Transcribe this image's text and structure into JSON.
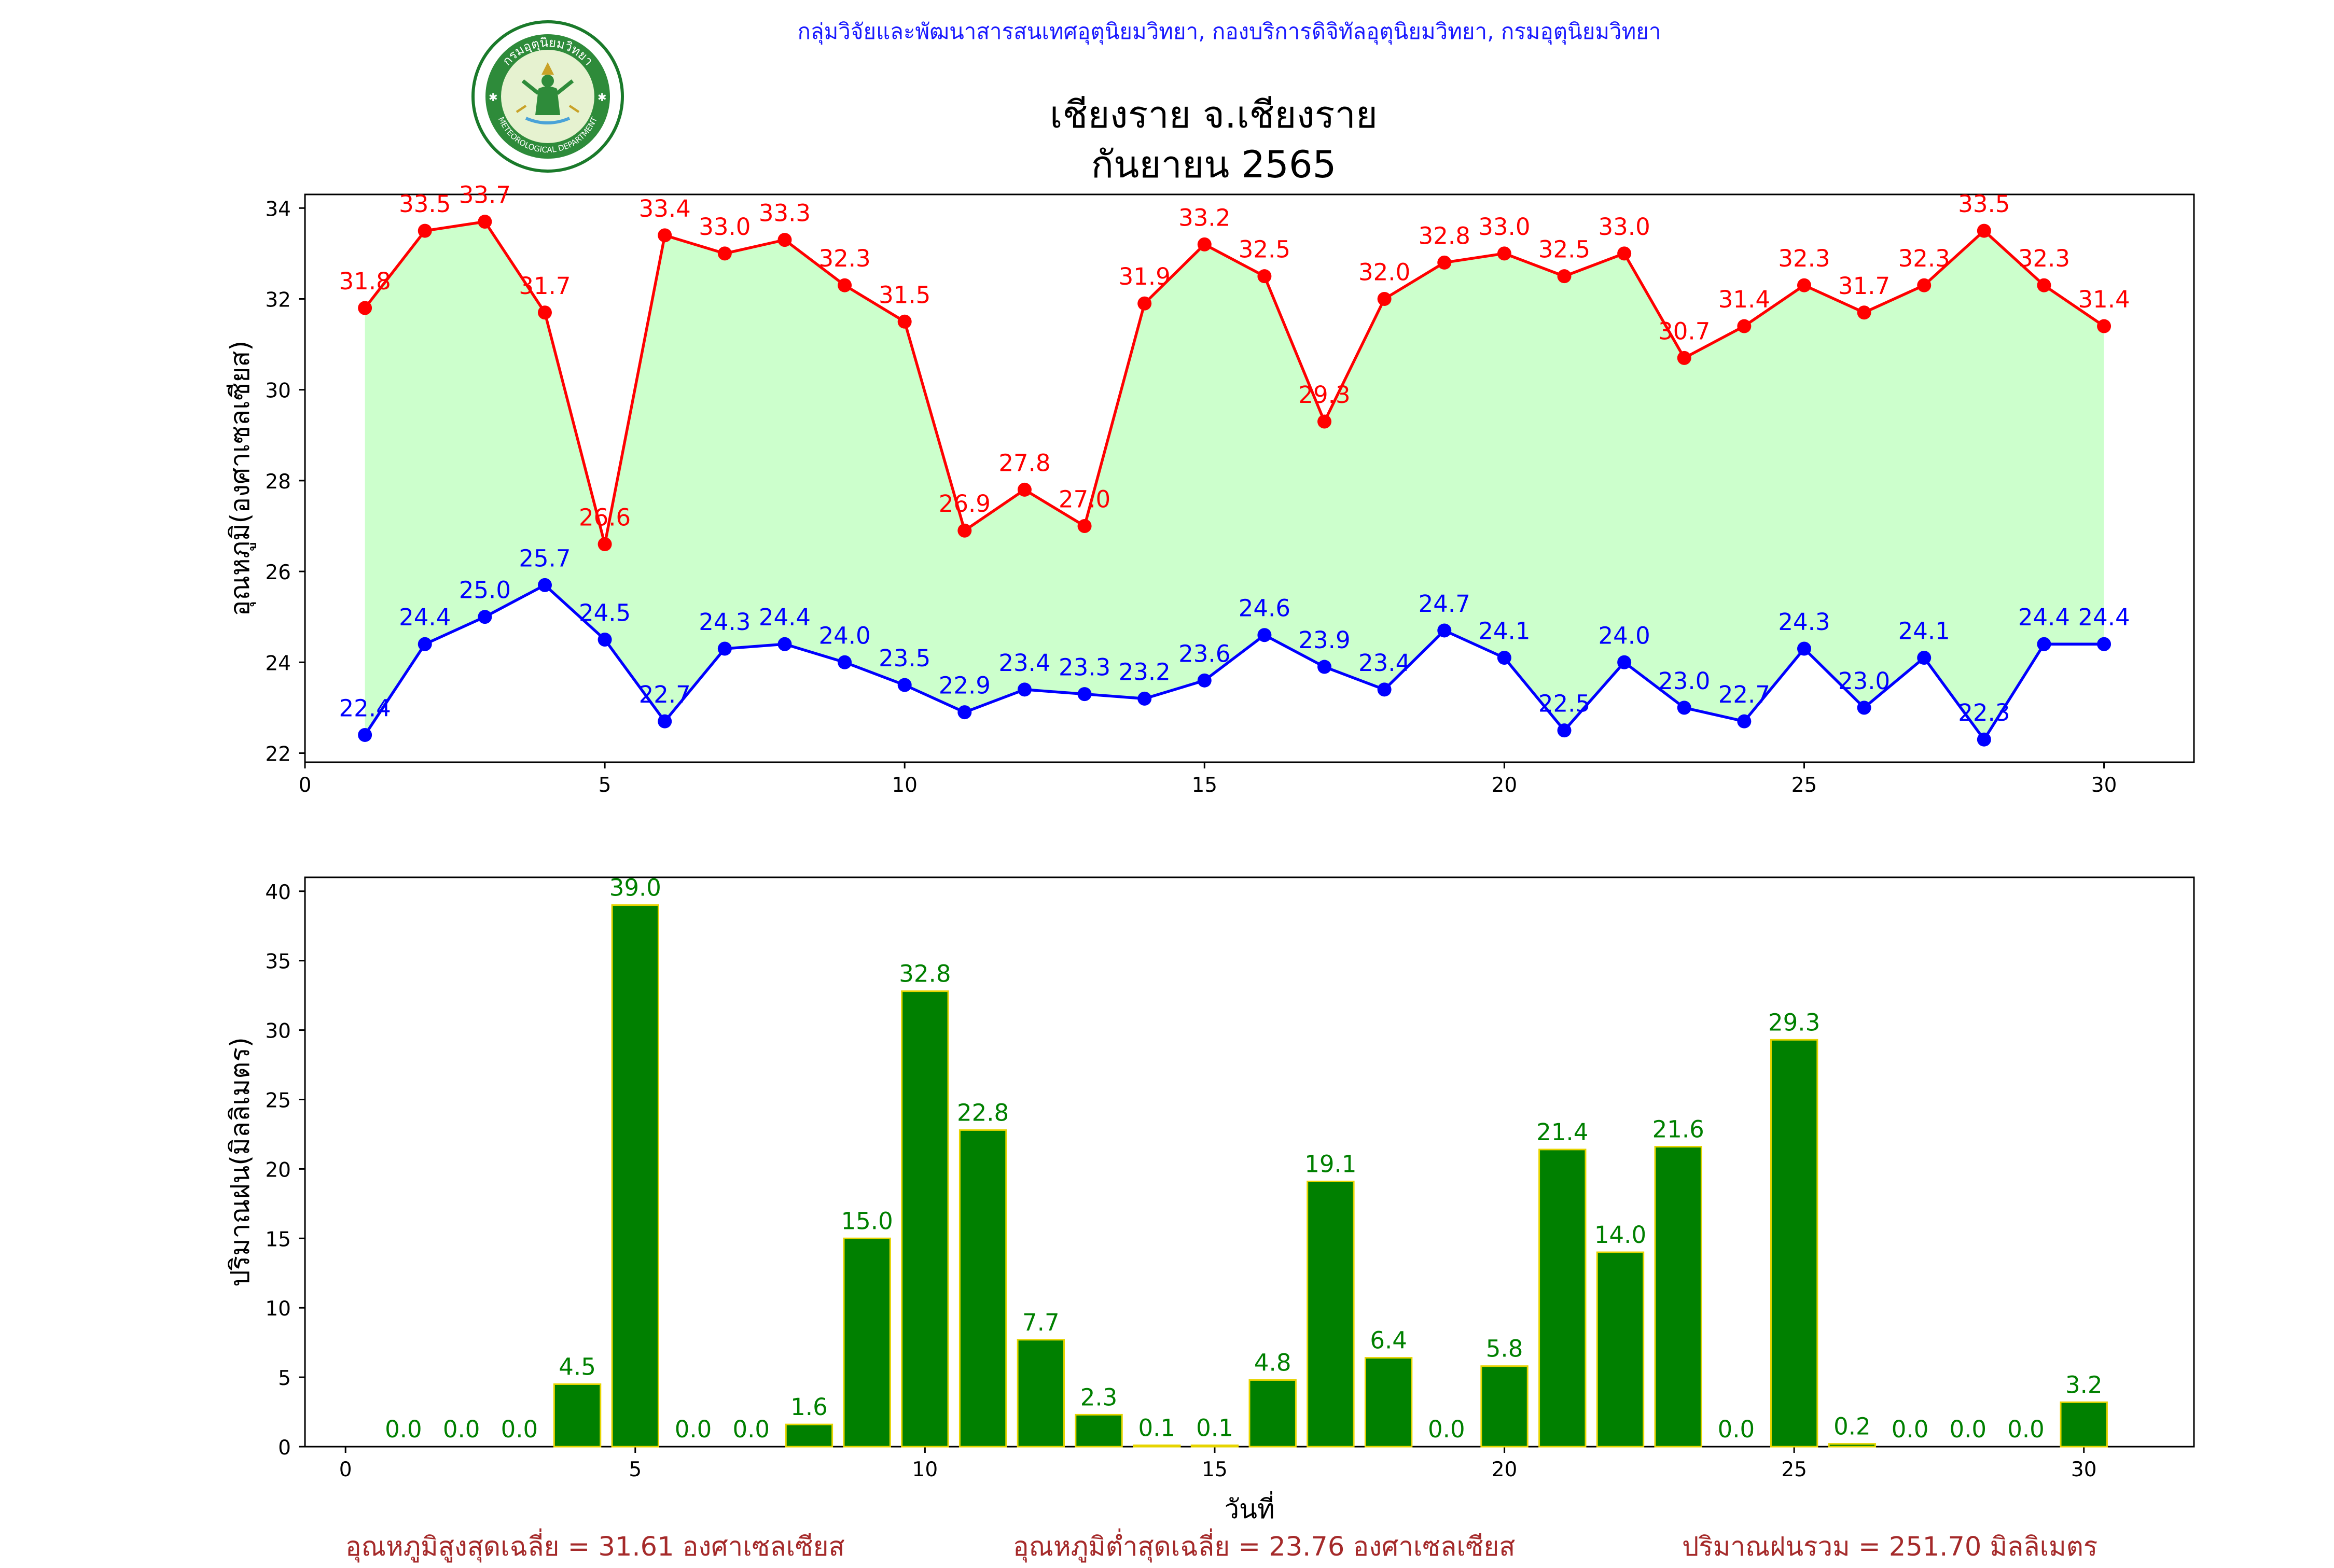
{
  "header": {
    "credit": "กลุ่มวิจัยและพัฒนาสารสนเทศอุตุนิยมวิทยา, กองบริการดิจิทัลอุตุนิยมวิทยา, กรมอุตุนิยมวิทยา",
    "title_line1": "เชียงราย จ.เชียงราย",
    "title_line2": "กันยายน 2565"
  },
  "logo": {
    "top_text": "กรมอุตุนิยมวิทยา",
    "bottom_text": "METEOROLOGICAL DEPARTMENT",
    "colors": {
      "ring": "#1a7a2a",
      "inner": "#e6f2d0",
      "figure": "#2e8b3a"
    }
  },
  "colors": {
    "max_line": "#ff0000",
    "min_line": "#0000ff",
    "band_fill": "#ccffcc",
    "rain_bar": "#008000",
    "rain_edge": "#e6d400",
    "rain_label": "#008000",
    "footer": "#a52a2a"
  },
  "chart_data": [
    {
      "type": "line",
      "title": "",
      "xlabel": "",
      "ylabel": "อุณหภูมิ(องศาเซลเซียส)",
      "xlim": [
        0,
        31.5
      ],
      "ylim": [
        21.8,
        34.3
      ],
      "xticks": [
        0,
        5,
        10,
        15,
        20,
        25,
        30
      ],
      "yticks": [
        22,
        24,
        26,
        28,
        30,
        32,
        34
      ],
      "x": [
        1,
        2,
        3,
        4,
        5,
        6,
        7,
        8,
        9,
        10,
        11,
        12,
        13,
        14,
        15,
        16,
        17,
        18,
        19,
        20,
        21,
        22,
        23,
        24,
        25,
        26,
        27,
        28,
        29,
        30
      ],
      "fill_between": true,
      "series": [
        {
          "key": "max",
          "values": [
            31.8,
            33.5,
            33.7,
            31.7,
            26.6,
            33.4,
            33.0,
            33.3,
            32.3,
            31.5,
            26.9,
            27.8,
            27.0,
            31.9,
            33.2,
            32.5,
            29.3,
            32.0,
            32.8,
            33.0,
            32.5,
            33.0,
            30.7,
            31.4,
            32.3,
            31.7,
            32.3,
            33.5,
            32.3,
            31.4
          ]
        },
        {
          "key": "min",
          "values": [
            22.4,
            24.4,
            25.0,
            25.7,
            24.5,
            22.7,
            24.3,
            24.4,
            24.0,
            23.5,
            22.9,
            23.4,
            23.3,
            23.2,
            23.6,
            24.6,
            23.9,
            23.4,
            24.7,
            24.1,
            22.5,
            24.0,
            23.0,
            22.7,
            24.3,
            23.0,
            24.1,
            22.3,
            24.4,
            24.4
          ]
        }
      ]
    },
    {
      "type": "bar",
      "title": "",
      "xlabel": "วันที่",
      "ylabel": "ปริมาณฝน(มิลลิเมตร)",
      "xlim": [
        -0.7,
        31.9
      ],
      "ylim": [
        0,
        41
      ],
      "xticks": [
        0,
        5,
        10,
        15,
        20,
        25,
        30
      ],
      "yticks": [
        0,
        5,
        10,
        15,
        20,
        25,
        30,
        35,
        40
      ],
      "categories": [
        1,
        2,
        3,
        4,
        5,
        6,
        7,
        8,
        9,
        10,
        11,
        12,
        13,
        14,
        15,
        16,
        17,
        18,
        19,
        20,
        21,
        22,
        23,
        24,
        25,
        26,
        27,
        28,
        29,
        30
      ],
      "values": [
        0.0,
        0.0,
        0.0,
        4.5,
        39.0,
        0.0,
        0.0,
        1.6,
        15.0,
        32.8,
        22.8,
        7.7,
        2.3,
        0.1,
        0.1,
        4.8,
        19.1,
        6.4,
        0.0,
        5.8,
        21.4,
        14.0,
        21.6,
        0.0,
        29.3,
        0.2,
        0.0,
        0.0,
        0.0,
        3.2
      ]
    }
  ],
  "footer": {
    "avg_max": "อุณหภูมิสูงสุดเฉลี่ย = 31.61 องศาเซลเซียส",
    "avg_min": "อุณหภูมิต่ำสุดเฉลี่ย = 23.76 องศาเซลเซียส",
    "total_rain": "ปริมาณฝนรวม = 251.70 มิลลิเมตร"
  }
}
